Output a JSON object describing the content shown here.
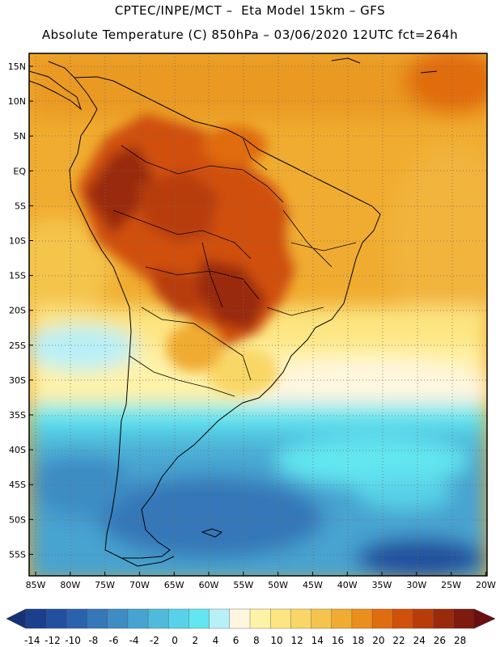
{
  "header": {
    "line1": "CPTEC/INPE/MCT –  Eta Model 15km – GFS",
    "line2": "Absolute Temperature (C) 850hPa – 03/06/2020 12UTC fct=264h"
  },
  "map": {
    "lat_range": [
      -58.5,
      16.5
    ],
    "lon_range": [
      -86.5,
      -20
    ],
    "lat_ticks": [
      "15N",
      "10N",
      "5N",
      "EQ",
      "5S",
      "10S",
      "15S",
      "20S",
      "25S",
      "30S",
      "35S",
      "40S",
      "45S",
      "50S",
      "55S"
    ],
    "lon_ticks": [
      "85W",
      "80W",
      "75W",
      "70W",
      "65W",
      "60W",
      "55W",
      "50W",
      "45W",
      "40W",
      "35W",
      "30W",
      "25W",
      "20W"
    ],
    "grid": true
  },
  "colorbar": {
    "labels": [
      "-14",
      "-12",
      "-10",
      "-8",
      "-6",
      "-4",
      "-2",
      "0",
      "2",
      "4",
      "6",
      "8",
      "10",
      "12",
      "14",
      "16",
      "18",
      "20",
      "22",
      "24",
      "26",
      "28"
    ],
    "colors": [
      "#1a3f8c",
      "#22509e",
      "#2a62ae",
      "#3577b8",
      "#3e8cc4",
      "#47a3d0",
      "#4fbadc",
      "#58d2e8",
      "#62e6f0",
      "#b8f0f8",
      "#fff6e0",
      "#fef2a8",
      "#fde682",
      "#f9d766",
      "#f4c44c",
      "#f0ac30",
      "#ea8e1e",
      "#e06c10",
      "#d0500c",
      "#b83c0a",
      "#9a2a0c",
      "#7e1a0e"
    ],
    "under_color": "#17307a",
    "over_color": "#6a0e10"
  }
}
